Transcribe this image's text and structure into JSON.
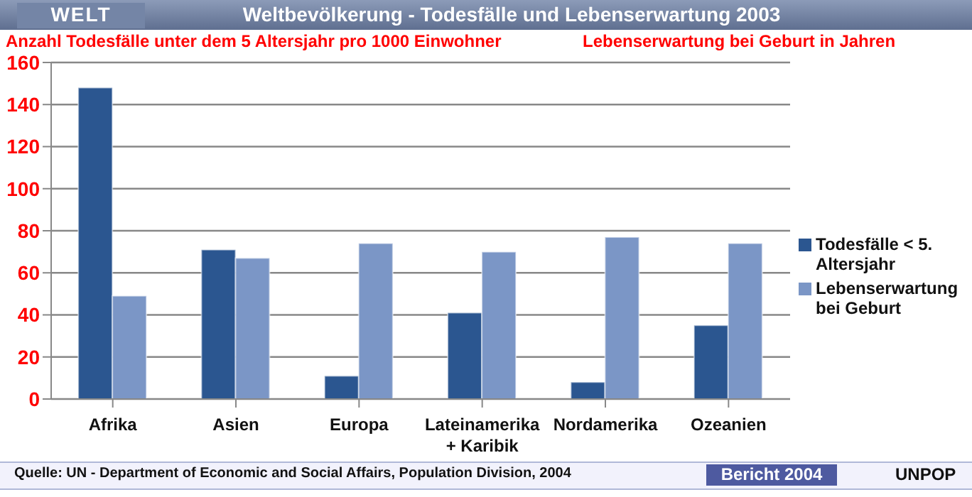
{
  "chart_data": {
    "type": "bar",
    "title": "Weltbevölkerung -  Todesfälle und Lebenserwartung 2003",
    "ylabel": "Anzahl Todesfälle unter dem 5 Altersjahr pro 1000 Einwohner",
    "annotations": [
      "WELT",
      "Lebenserwartung bei Geburt in Jahren",
      "Quelle: UN -  Department of Economic and Social Affairs, Population Division, 2004",
      "Bericht 2004",
      "UNPOP"
    ],
    "categories": [
      "Afrika",
      "Asien",
      "Europa",
      "Lateinamerika\n+ Karibik",
      "Nordamerika",
      "Ozeanien"
    ],
    "series": [
      {
        "name": "Todesfälle < 5. Altersjahr",
        "color": "#2b5690",
        "values": [
          148,
          71,
          11,
          41,
          8,
          35
        ]
      },
      {
        "name": "Lebenserwartung bei Geburt",
        "color": "#7b96c6",
        "values": [
          49,
          67,
          74,
          70,
          77,
          74
        ]
      }
    ],
    "ylim": [
      0,
      160
    ],
    "yticks": [
      0,
      20,
      40,
      60,
      80,
      100,
      120,
      140,
      160
    ],
    "grid": "y",
    "legend": "right"
  }
}
